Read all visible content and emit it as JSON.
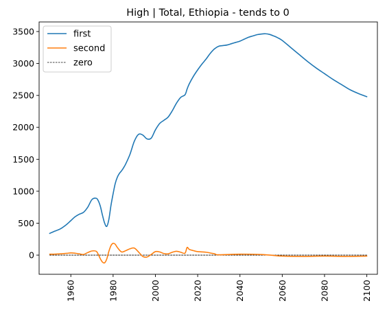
{
  "chart_data": {
    "type": "line",
    "title": "High | Total, Ethiopia  - tends to 0",
    "xlabel": "",
    "ylabel": "",
    "xlim": [
      1945,
      2105
    ],
    "ylim": [
      -300,
      3650
    ],
    "x_ticks": [
      1960,
      1980,
      2000,
      2020,
      2040,
      2060,
      2080,
      2100
    ],
    "y_ticks": [
      0,
      500,
      1000,
      1500,
      2000,
      2500,
      3000,
      3500
    ],
    "grid": false,
    "legend_position": "top-left",
    "series": [
      {
        "name": "first",
        "color": "#1f77b4",
        "style": "solid",
        "x": [
          1950,
          1952,
          1955,
          1958,
          1960,
          1962,
          1964,
          1966,
          1968,
          1970,
          1972,
          1973,
          1974,
          1975,
          1976,
          1977,
          1978,
          1979,
          1980,
          1981,
          1982,
          1983,
          1984,
          1985,
          1986,
          1988,
          1990,
          1992,
          1994,
          1996,
          1998,
          2000,
          2002,
          2004,
          2006,
          2008,
          2010,
          2012,
          2014,
          2015,
          2016,
          2018,
          2020,
          2022,
          2024,
          2026,
          2028,
          2030,
          2032,
          2034,
          2036,
          2038,
          2040,
          2042,
          2044,
          2046,
          2048,
          2050,
          2052,
          2054,
          2056,
          2058,
          2060,
          2064,
          2068,
          2072,
          2076,
          2080,
          2084,
          2088,
          2092,
          2096,
          2100
        ],
        "y": [
          340,
          370,
          410,
          480,
          540,
          600,
          640,
          670,
          750,
          870,
          890,
          850,
          760,
          620,
          500,
          450,
          560,
          780,
          960,
          1120,
          1220,
          1280,
          1320,
          1370,
          1430,
          1580,
          1780,
          1890,
          1880,
          1820,
          1830,
          1960,
          2060,
          2110,
          2160,
          2260,
          2380,
          2470,
          2510,
          2600,
          2680,
          2800,
          2900,
          2990,
          3070,
          3160,
          3230,
          3270,
          3280,
          3290,
          3310,
          3330,
          3350,
          3380,
          3410,
          3430,
          3450,
          3460,
          3465,
          3455,
          3430,
          3400,
          3360,
          3250,
          3140,
          3030,
          2930,
          2840,
          2750,
          2670,
          2590,
          2530,
          2480
        ]
      },
      {
        "name": "second",
        "color": "#ff7f0e",
        "style": "solid",
        "x": [
          1950,
          1952,
          1955,
          1958,
          1960,
          1962,
          1964,
          1966,
          1968,
          1970,
          1972,
          1973,
          1974,
          1975,
          1976,
          1977,
          1978,
          1979,
          1980,
          1981,
          1982,
          1984,
          1986,
          1988,
          1990,
          1992,
          1994,
          1996,
          1998,
          2000,
          2002,
          2004,
          2006,
          2008,
          2010,
          2012,
          2014,
          2015,
          2016,
          2018,
          2020,
          2024,
          2028,
          2030,
          2040,
          2050,
          2056,
          2060,
          2070,
          2080,
          2090,
          2100
        ],
        "y": [
          15,
          15,
          20,
          28,
          35,
          30,
          20,
          10,
          40,
          65,
          60,
          10,
          -60,
          -110,
          -120,
          -60,
          60,
          150,
          185,
          170,
          120,
          50,
          70,
          100,
          110,
          50,
          -20,
          -30,
          10,
          55,
          50,
          25,
          20,
          45,
          60,
          45,
          30,
          120,
          90,
          70,
          55,
          45,
          20,
          5,
          15,
          10,
          -5,
          -15,
          -20,
          -15,
          -20,
          -15
        ]
      },
      {
        "name": "zero",
        "color": "#000000",
        "style": "dashed",
        "x": [
          1950,
          2100
        ],
        "y": [
          0,
          0
        ]
      }
    ]
  }
}
